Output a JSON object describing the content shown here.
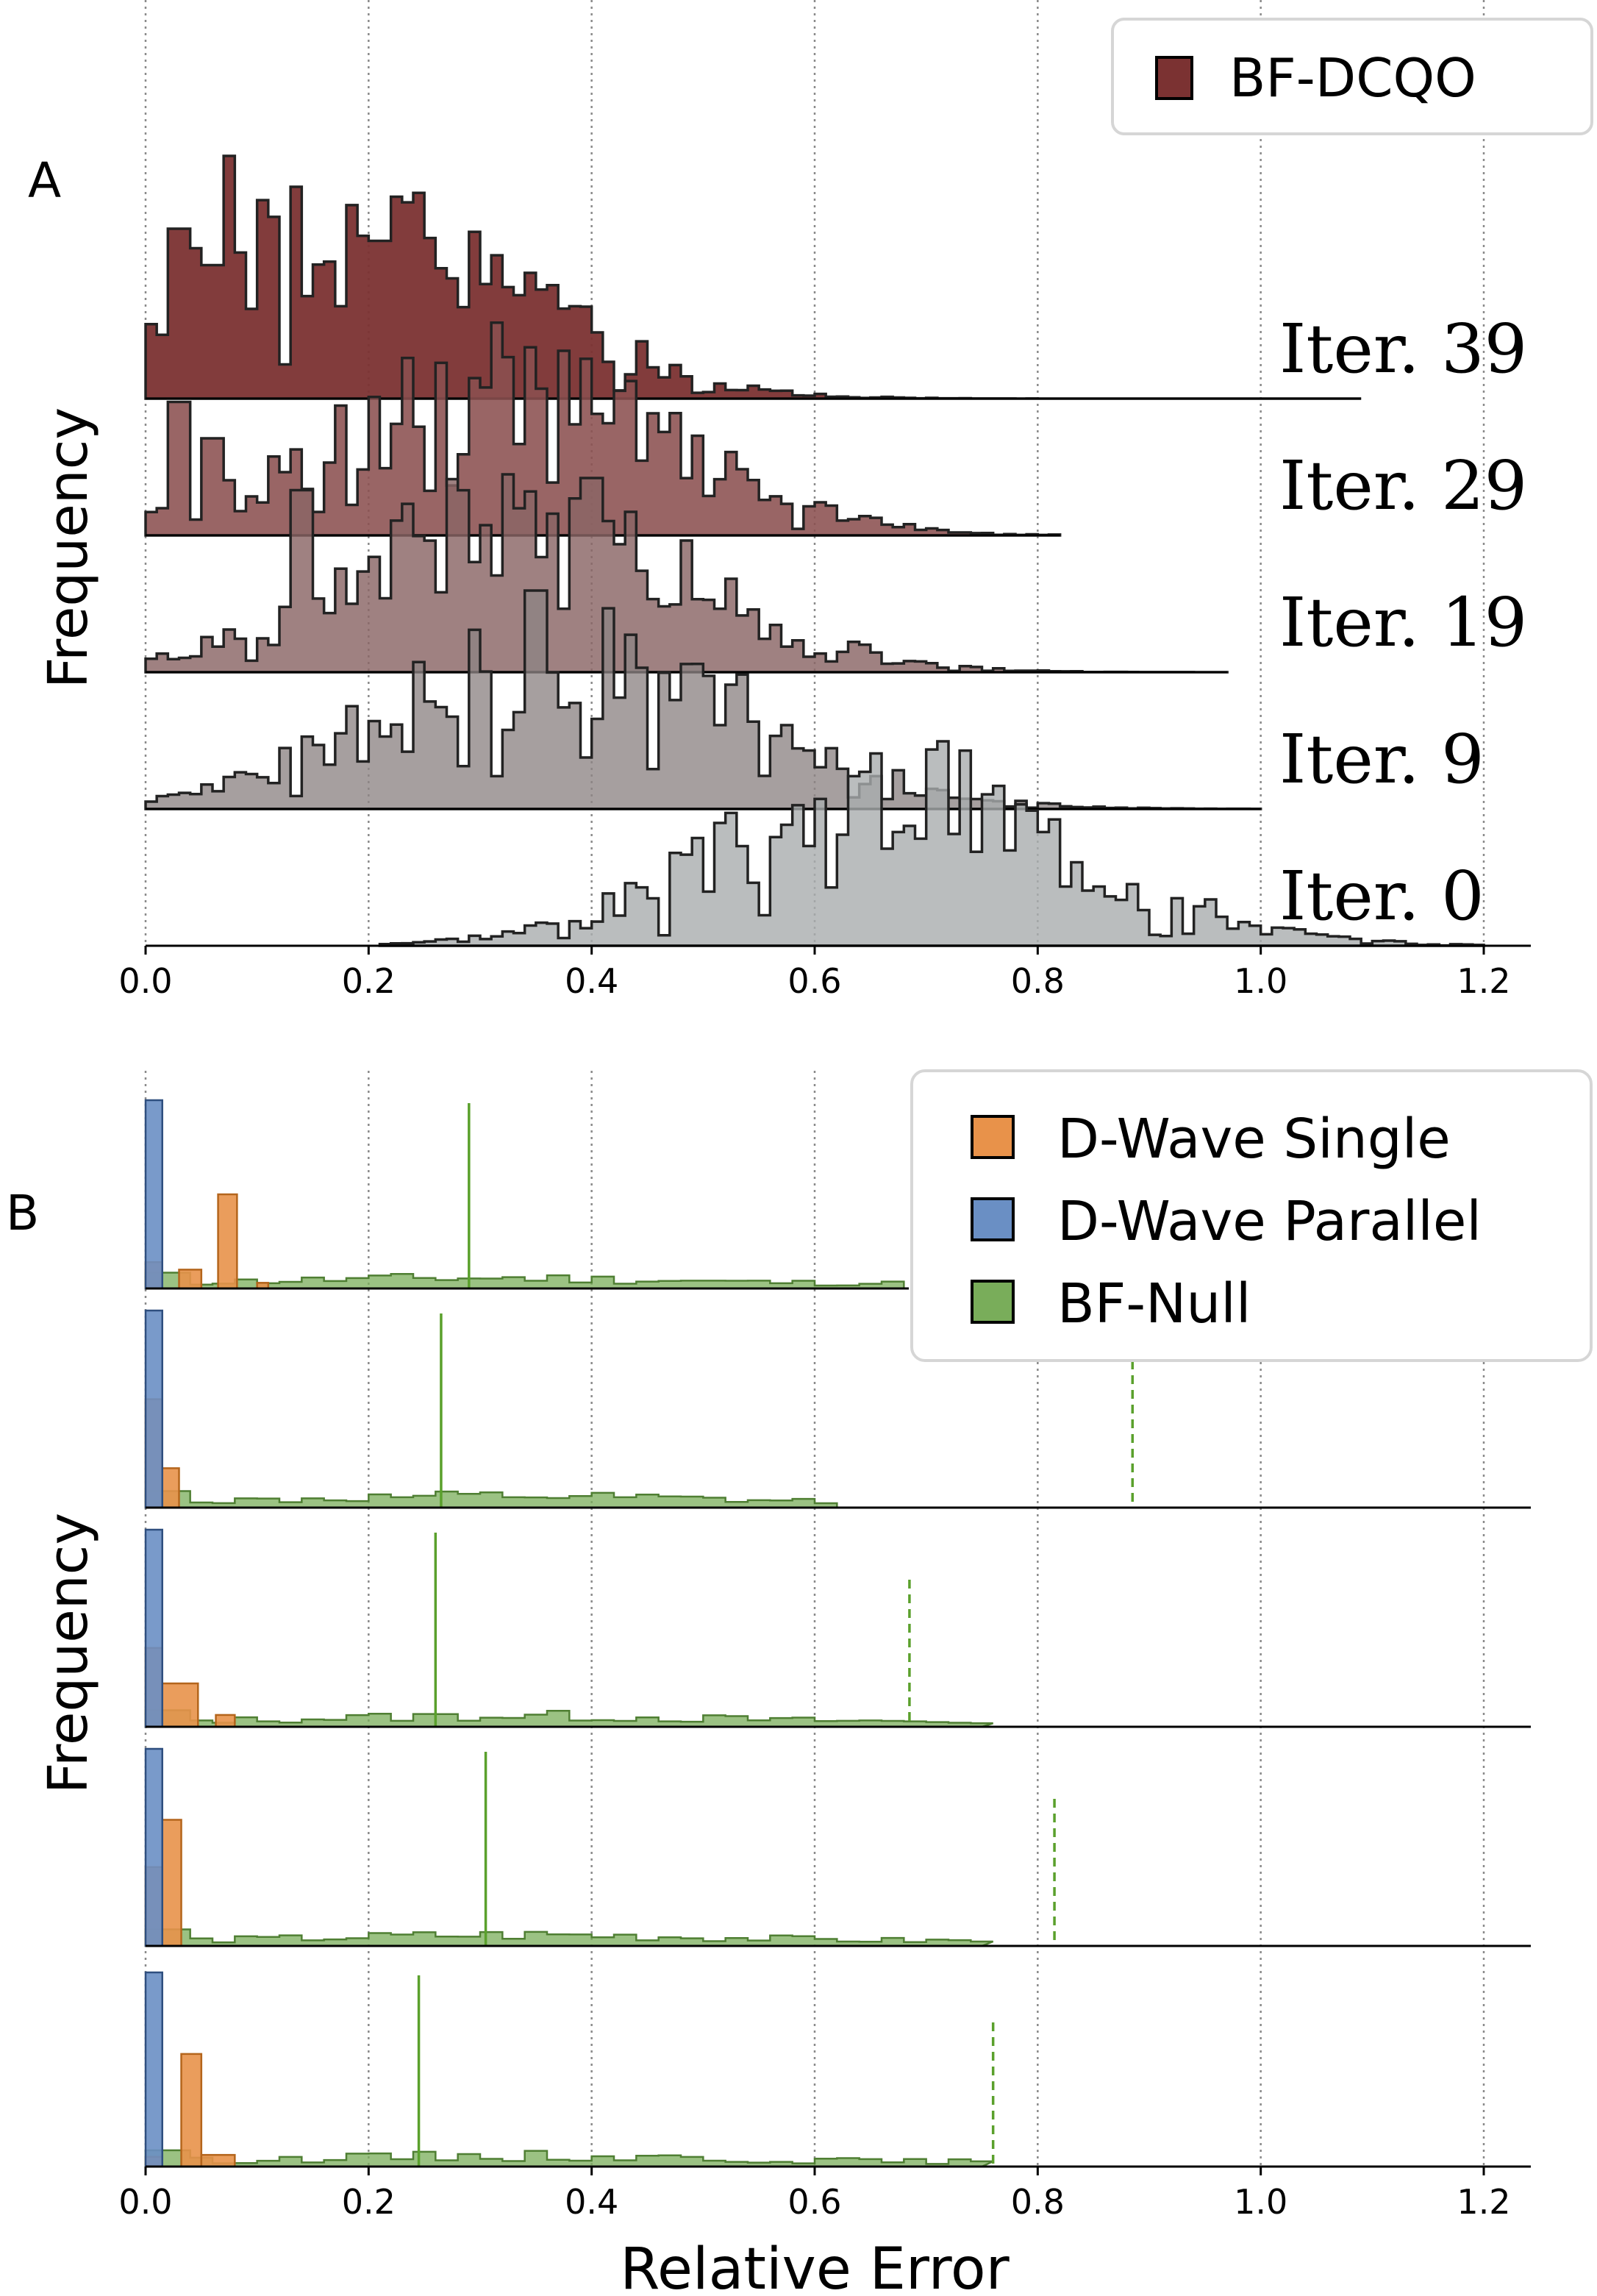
{
  "chart_data": [
    {
      "panel_label": "A",
      "type": "ridgeline_histogram",
      "ylabel": "Frequency",
      "xlabel": "",
      "xlim": [
        0.0,
        1.25
      ],
      "xticks": [
        "0.0",
        "0.2",
        "0.4",
        "0.6",
        "0.8",
        "1.0",
        "1.2"
      ],
      "grid": "vertical dotted",
      "legend": {
        "position": "top-right",
        "entries": [
          {
            "name": "BF-DCQO",
            "color": "#7b3232"
          }
        ]
      },
      "ridges": [
        {
          "label": "Iter. 39",
          "color": "#7b3232",
          "opacity": 0.95,
          "range": [
            0.0,
            1.09
          ],
          "peak": 0.2,
          "spread": 0.15,
          "skew": 0.3,
          "seed": 39,
          "spikes": [
            [
              0.03,
              0.7
            ],
            [
              0.075,
              1.0
            ],
            [
              0.06,
              0.55
            ],
            [
              0.21,
              0.65
            ]
          ]
        },
        {
          "label": "Iter. 29",
          "color": "#8b5050",
          "opacity": 0.88,
          "range": [
            0.0,
            0.82
          ],
          "peak": 0.32,
          "spread": 0.15,
          "skew": 0.0,
          "seed": 29,
          "spikes": [
            [
              0.03,
              0.55
            ],
            [
              0.06,
              0.4
            ]
          ]
        },
        {
          "label": "Iter. 19",
          "color": "#8a6565",
          "opacity": 0.82,
          "range": [
            0.0,
            0.97
          ],
          "peak": 0.34,
          "spread": 0.15,
          "skew": 0.0,
          "seed": 19,
          "spikes": [
            [
              0.14,
              0.75
            ],
            [
              0.4,
              0.8
            ]
          ]
        },
        {
          "label": "Iter. 9",
          "color": "#8d8484",
          "opacity": 0.78,
          "range": [
            0.0,
            1.0
          ],
          "peak": 0.38,
          "spread": 0.16,
          "skew": 0.0,
          "seed": 9,
          "spikes": [
            [
              0.35,
              0.9
            ]
          ]
        },
        {
          "label": "Iter. 0",
          "color": "#a9adae",
          "opacity": 0.8,
          "range": [
            0.21,
            1.2
          ],
          "peak": 0.68,
          "spread": 0.16,
          "skew": 0.0,
          "seed": 3,
          "spikes": []
        }
      ]
    },
    {
      "panel_label": "B",
      "type": "ridgeline_histogram",
      "ylabel": "Frequency",
      "xlabel": "Relative Error",
      "xlim": [
        0.0,
        1.25
      ],
      "xticks": [
        "0.0",
        "0.2",
        "0.4",
        "0.6",
        "0.8",
        "1.0",
        "1.2"
      ],
      "grid": "vertical dotted",
      "legend": {
        "position": "top-right",
        "entries": [
          {
            "name": "D-Wave Single",
            "color": "#e8924a"
          },
          {
            "name": "D-Wave Parallel",
            "color": "#6a8fc4"
          },
          {
            "name": "BF-Null",
            "color": "#79ad5a"
          }
        ]
      },
      "rows": [
        {
          "parallel_bar": [
            0.0,
            0.015
          ],
          "single_bars": [
            [
              0.0,
              0.015,
              0.14
            ],
            [
              0.03,
              0.05,
              0.1
            ],
            [
              0.065,
              0.082,
              0.5
            ],
            [
              0.1,
              0.11,
              0.03
            ]
          ],
          "null_range": [
            0.0,
            0.68
          ],
          "null_peak": 0.3,
          "solid_line": 0.29,
          "dashed_line": null
        },
        {
          "parallel_bar": [
            0.0,
            0.015
          ],
          "single_bars": [
            [
              0.0,
              0.015,
              0.55
            ],
            [
              0.015,
              0.03,
              0.2
            ]
          ],
          "null_range": [
            0.0,
            0.62
          ],
          "null_peak": 0.32,
          "solid_line": 0.265,
          "dashed_line": 0.885
        },
        {
          "parallel_bar": [
            0.0,
            0.015
          ],
          "single_bars": [
            [
              0.0,
              0.015,
              0.4
            ],
            [
              0.015,
              0.047,
              0.22
            ],
            [
              0.063,
              0.08,
              0.06
            ]
          ],
          "null_range": [
            0.0,
            0.75
          ],
          "null_peak": 0.33,
          "solid_line": 0.26,
          "dashed_line": 0.685
        },
        {
          "parallel_bar": [
            0.0,
            0.015
          ],
          "single_bars": [
            [
              0.0,
              0.015,
              0.4
            ],
            [
              0.015,
              0.032,
              0.64
            ]
          ],
          "null_range": [
            0.0,
            0.75
          ],
          "null_peak": 0.34,
          "solid_line": 0.305,
          "dashed_line": 0.815
        },
        {
          "parallel_bar": [
            0.0,
            0.015
          ],
          "single_bars": [
            [
              0.0,
              0.015,
              0.05
            ],
            [
              0.032,
              0.05,
              0.58
            ],
            [
              0.05,
              0.08,
              0.06
            ]
          ],
          "null_range": [
            0.0,
            0.75
          ],
          "null_peak": 0.33,
          "solid_line": 0.245,
          "dashed_line": 0.76
        }
      ]
    }
  ]
}
